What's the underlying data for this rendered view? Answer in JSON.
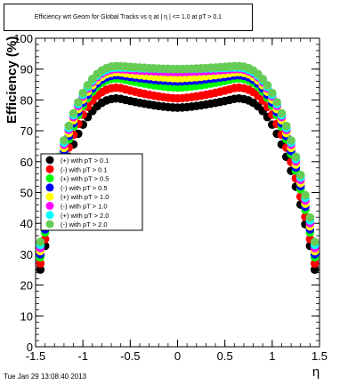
{
  "chart_data": {
    "type": "scatter",
    "title": "Efficiency wrt Geom for Global Tracks vs    η at |   η | <= 1.0 at pT > 0.1",
    "xlabel": "η",
    "ylabel": "Efficiency (%)",
    "xlim": [
      -1.5,
      1.5
    ],
    "ylim": [
      0,
      100
    ],
    "x_ticks": [
      "-1.5",
      "-1",
      "-0.5",
      "0",
      "0.5",
      "1",
      "1.5"
    ],
    "y_ticks": [
      "0",
      "10",
      "20",
      "30",
      "40",
      "50",
      "60",
      "70",
      "80",
      "90",
      "100"
    ],
    "grid": false,
    "legend_position": "left-middle",
    "series": [
      {
        "name": "(+) with pT > 0.1",
        "marker": "circle",
        "color": "#000000",
        "shape": {
          "plateau": 80.5,
          "dip": 77.5,
          "edge": 25
        }
      },
      {
        "name": "(-) with pT > 0.1",
        "marker": "circle",
        "color": "#ff0000",
        "shape": {
          "plateau": 84,
          "dip": 80.5,
          "edge": 27
        }
      },
      {
        "name": "(+) with pT > 0.5",
        "marker": "circle",
        "color": "#00ff00",
        "shape": {
          "plateau": 87,
          "dip": 84,
          "edge": 29
        }
      },
      {
        "name": "(-) with pT > 0.5",
        "marker": "circle",
        "color": "#0000ff",
        "shape": {
          "plateau": 88,
          "dip": 86,
          "edge": 30
        }
      },
      {
        "name": "(+) with pT > 1.0",
        "marker": "circle",
        "color": "#ffff00",
        "shape": {
          "plateau": 89,
          "dip": 87,
          "edge": 31
        }
      },
      {
        "name": "(-) with pT > 1.0",
        "marker": "circle",
        "color": "#ff00ff",
        "shape": {
          "plateau": 90,
          "dip": 89,
          "edge": 32
        }
      },
      {
        "name": "(+) with pT > 2.0",
        "marker": "circle",
        "color": "#00ffff",
        "shape": {
          "plateau": 90.5,
          "dip": 90,
          "edge": 33
        }
      },
      {
        "name": "(-) with pT > 2.0",
        "marker": "circle",
        "color": "#66cc55",
        "shape": {
          "plateau": 91,
          "dip": 90,
          "edge": 34
        }
      }
    ]
  },
  "header": {
    "title": "Efficiency wrt Geom for Global Tracks vs    η at |   η | <= 1.0 at pT > 0.1"
  },
  "footer": {
    "timestamp": "Tue Jan 29 13:08:40 2013"
  }
}
